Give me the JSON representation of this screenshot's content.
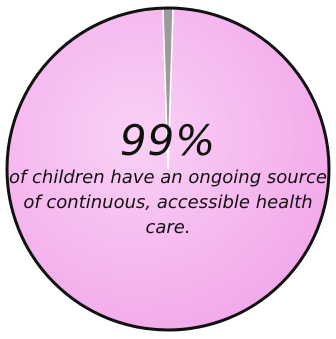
{
  "chart_data": {
    "type": "pie",
    "slices": [
      {
        "label": "",
        "value": 99,
        "color": "#f6b8ee"
      },
      {
        "label": "",
        "value": 1,
        "color": "#9b9b9b"
      }
    ],
    "headline": "99%",
    "caption": "of children have an ongoing source of continuous, accessible health care."
  },
  "colors": {
    "main_slice_dark": "#f2a4ea",
    "outline": "#111111",
    "text": "#111111"
  }
}
